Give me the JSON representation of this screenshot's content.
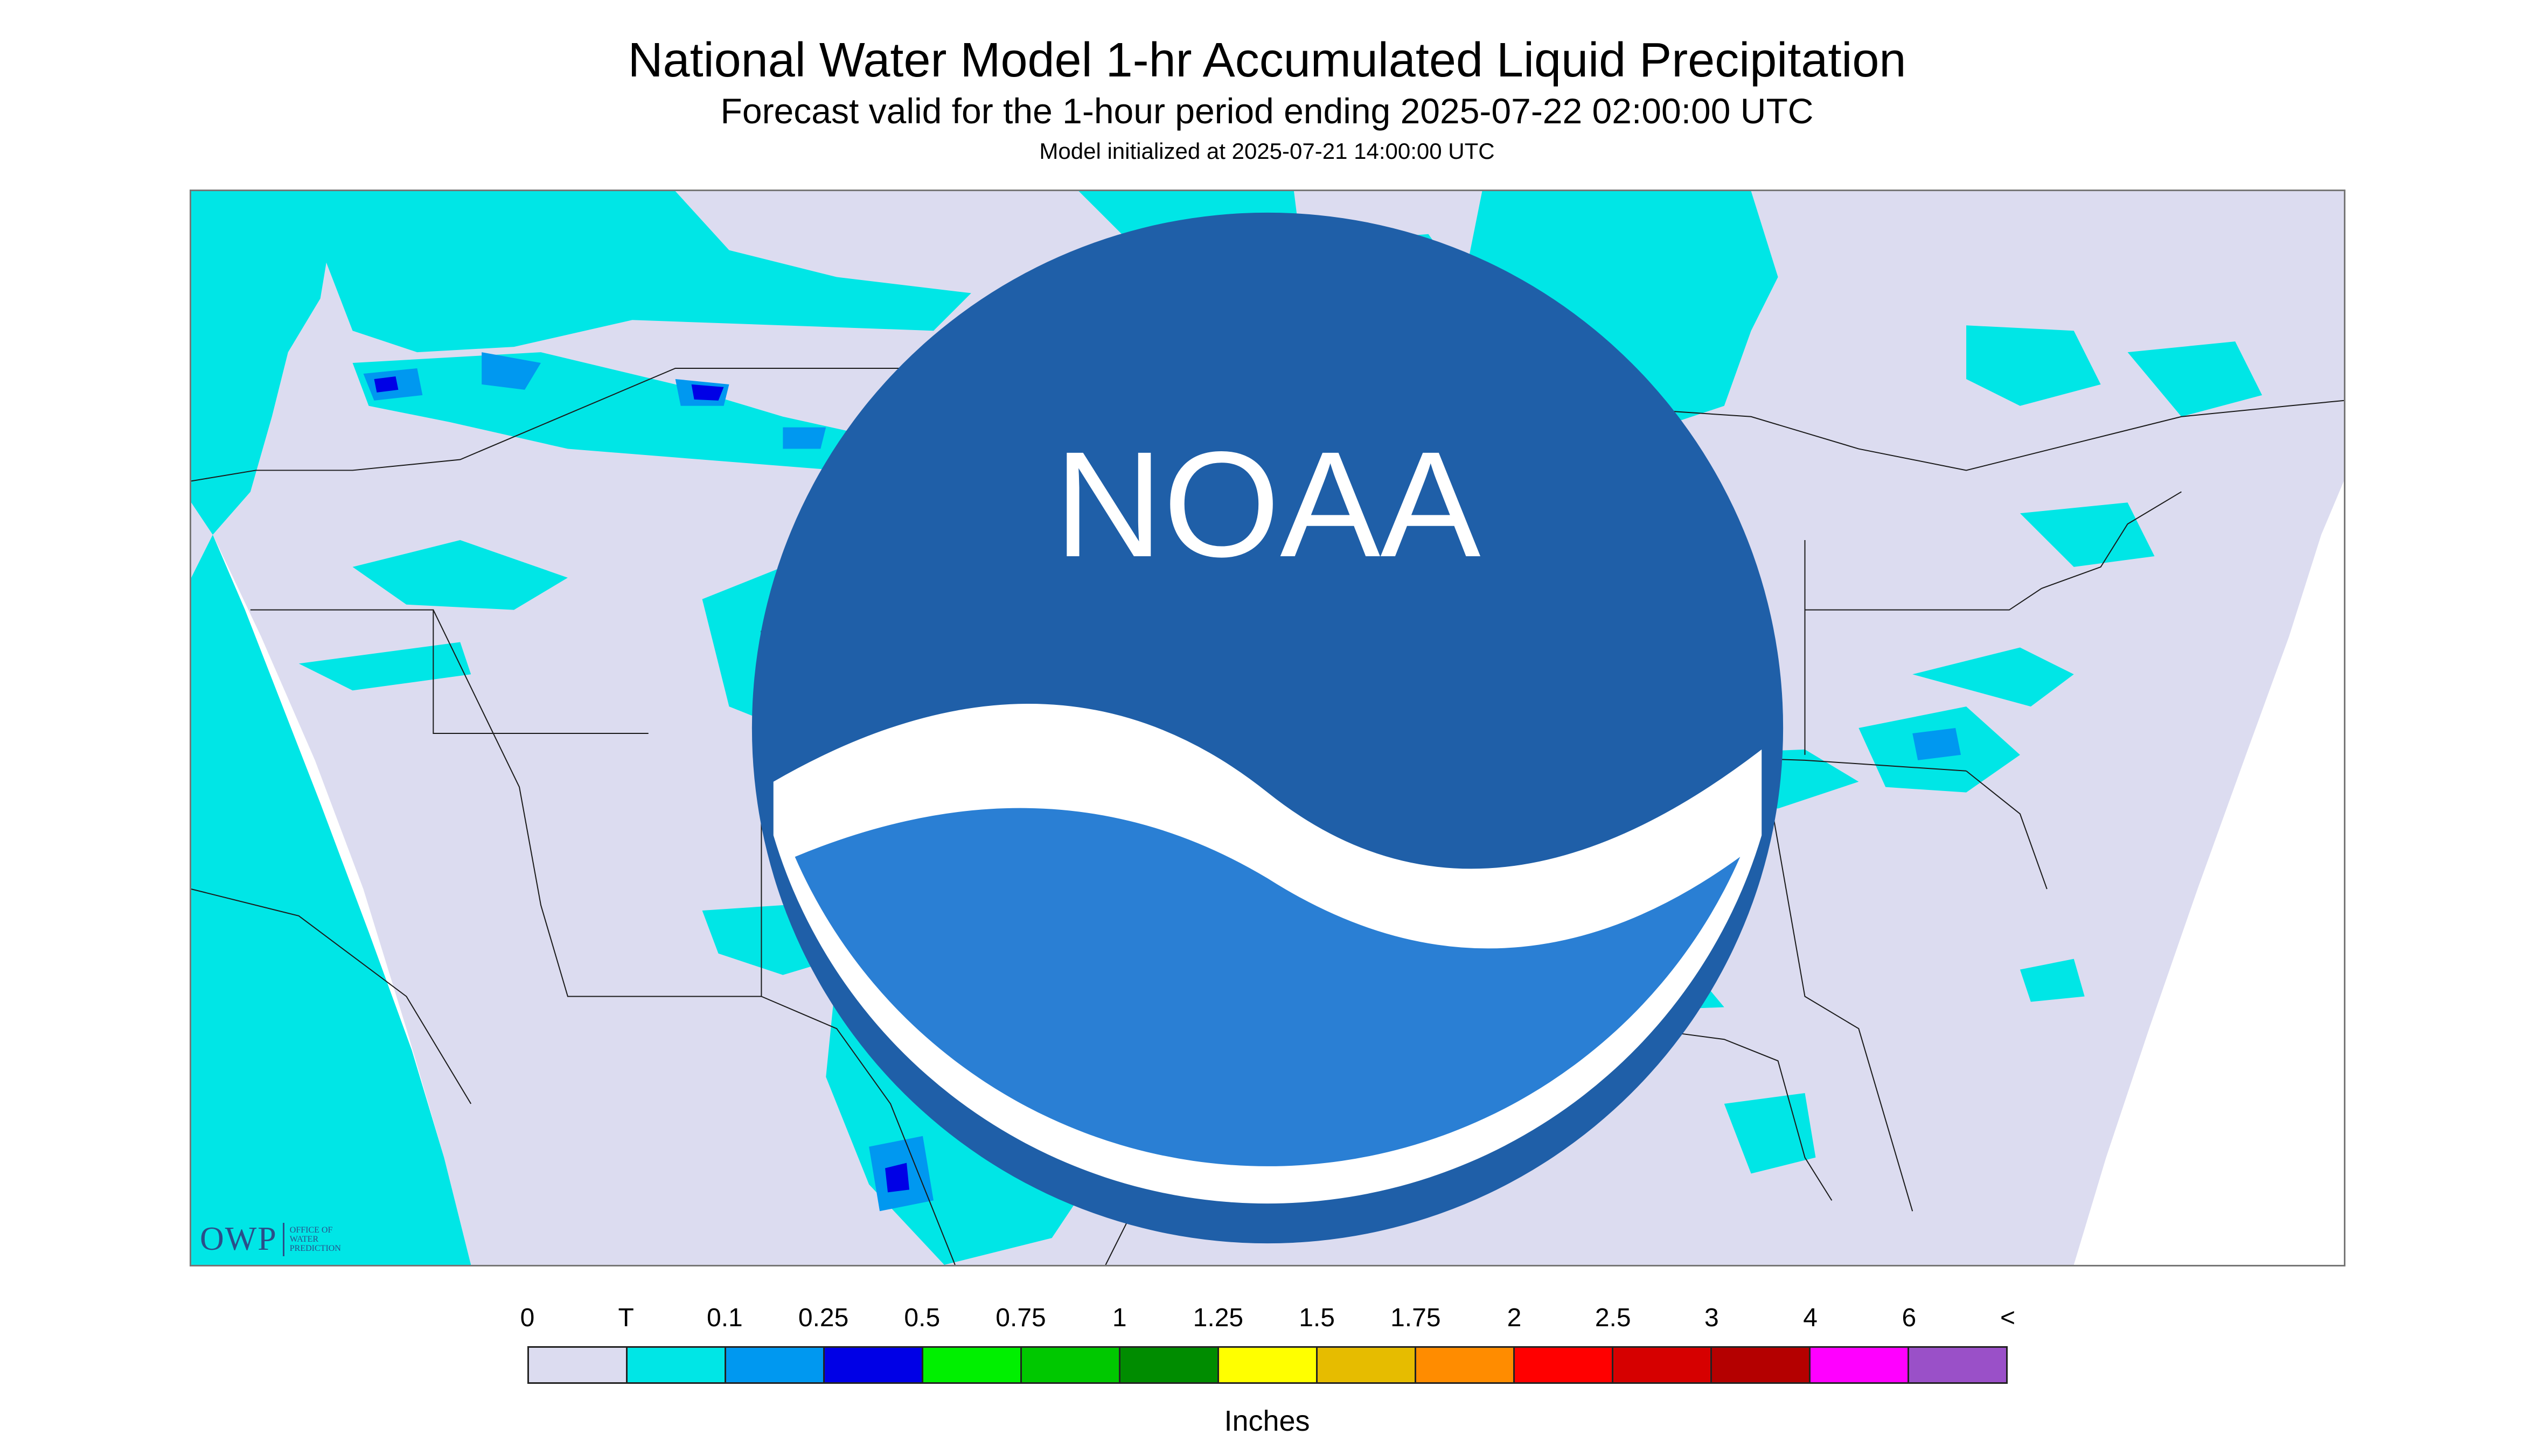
{
  "header": {
    "title": "National Water Model 1-hr Accumulated Liquid Precipitation",
    "subtitle": "Forecast valid for the 1-hour period ending 2025-07-22 02:00:00 UTC",
    "init": "Model initialized at 2025-07-21 14:00:00 UTC"
  },
  "logos": {
    "owp_short": "OWP",
    "owp_long": "OFFICE OF\nWATER\nPREDICTION",
    "noaa": "NOAA"
  },
  "legend": {
    "labels": [
      "0",
      "T",
      "0.1",
      "0.25",
      "0.5",
      "0.75",
      "1",
      "1.25",
      "1.5",
      "1.75",
      "2",
      "2.5",
      "3",
      "4",
      "6",
      "<"
    ],
    "colors": [
      "#dcdcf0",
      "#00e6e6",
      "#0098f0",
      "#0000e6",
      "#00f000",
      "#00c800",
      "#008c00",
      "#ffff00",
      "#e6bc00",
      "#ff8c00",
      "#ff0000",
      "#d60000",
      "#b40000",
      "#ff00ff",
      "#9a50c8"
    ],
    "units": "Inches"
  },
  "map_colors": {
    "background": "#ffffff",
    "land": "#dcdcf0",
    "trace": "#00e6e6",
    "light": "#0098f0",
    "moderate": "#0000e6",
    "heavy": "#00f000",
    "lines": "#1a1a1a"
  }
}
